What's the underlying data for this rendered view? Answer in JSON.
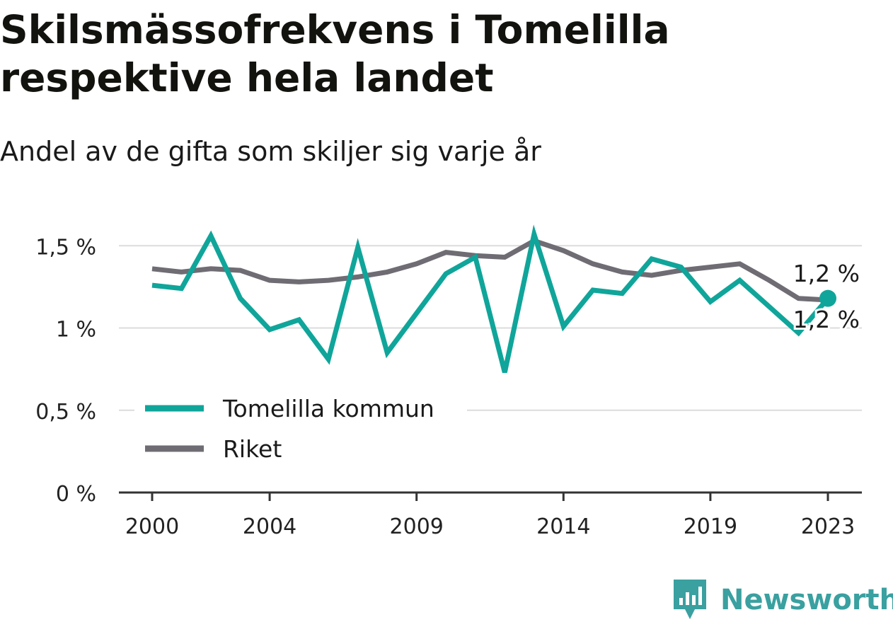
{
  "header": {
    "title": "Skilsmässofrekvens i Tomelilla respektive hela landet",
    "subtitle": "Andel av de gifta som skiljer sig varje år"
  },
  "brand": {
    "name": "Newsworthy",
    "color": "#3aa0a0"
  },
  "colors": {
    "tomelilla": "#10a59a",
    "riket": "#6f6c74",
    "grid": "#dcdcdc",
    "axis": "#333333"
  },
  "chart_data": {
    "type": "line",
    "title": "Skilsmässofrekvens i Tomelilla respektive hela landet",
    "subtitle": "Andel av de gifta som skiljer sig varje år",
    "xlabel": "",
    "ylabel": "",
    "x": [
      2000,
      2001,
      2002,
      2003,
      2004,
      2005,
      2006,
      2007,
      2008,
      2009,
      2010,
      2011,
      2012,
      2013,
      2014,
      2015,
      2016,
      2017,
      2018,
      2019,
      2020,
      2021,
      2022,
      2023
    ],
    "xticks": [
      2000,
      2004,
      2009,
      2014,
      2019,
      2023
    ],
    "ylim": [
      0,
      1.6
    ],
    "yticks": [
      {
        "value": 0,
        "label": "0 %"
      },
      {
        "value": 0.5,
        "label": "0,5 %"
      },
      {
        "value": 1,
        "label": "1 %"
      },
      {
        "value": 1.5,
        "label": "1,5 %"
      }
    ],
    "grid": true,
    "legend_position": "bottom-left",
    "series": [
      {
        "name": "Tomelilla kommun",
        "color": "#10a59a",
        "values": [
          1.26,
          1.24,
          1.56,
          1.18,
          0.99,
          1.05,
          0.81,
          1.49,
          0.85,
          1.09,
          1.33,
          1.43,
          0.73,
          1.57,
          1.01,
          1.23,
          1.21,
          1.42,
          1.37,
          1.16,
          1.29,
          1.13,
          0.97,
          1.18
        ],
        "end_label": "1,2 %"
      },
      {
        "name": "Riket",
        "color": "#6f6c74",
        "values": [
          1.36,
          1.34,
          1.36,
          1.35,
          1.29,
          1.28,
          1.29,
          1.31,
          1.34,
          1.39,
          1.46,
          1.44,
          1.43,
          1.53,
          1.47,
          1.39,
          1.34,
          1.32,
          1.35,
          1.37,
          1.39,
          1.29,
          1.18,
          1.17
        ],
        "end_label": "1,2 %"
      }
    ]
  }
}
